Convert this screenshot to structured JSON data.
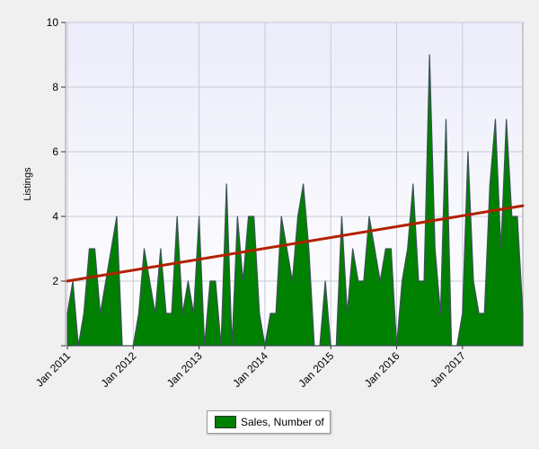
{
  "chart_data": {
    "type": "area",
    "ylabel": "Listings",
    "ylim": [
      0,
      10
    ],
    "y_ticks": [
      {
        "value": 2,
        "label": "2"
      },
      {
        "value": 4,
        "label": "4"
      },
      {
        "value": 6,
        "label": "6"
      },
      {
        "value": 8,
        "label": "8"
      },
      {
        "value": 10,
        "label": "10"
      }
    ],
    "x_ticks": [
      "Jan 2011",
      "Jan 2012",
      "Jan 2013",
      "Jan 2014",
      "Jan 2015",
      "Jan 2016",
      "Jan 2017"
    ],
    "x_start": "Jan 2011",
    "grid": true,
    "legend_position": "bottom",
    "series": [
      {
        "name": "Sales, Number of",
        "color": "#008000",
        "values": [
          1,
          2,
          0,
          1,
          3,
          3,
          1,
          2,
          3,
          4,
          0,
          0,
          0,
          1,
          3,
          2,
          1,
          3,
          1,
          1,
          4,
          1,
          2,
          1,
          4,
          0,
          2,
          2,
          0,
          5,
          0,
          4,
          2,
          4,
          4,
          1,
          0,
          1,
          1,
          4,
          3,
          2,
          4,
          5,
          3,
          0,
          0,
          2,
          0,
          0,
          4,
          1,
          3,
          2,
          2,
          4,
          3,
          2,
          3,
          3,
          0,
          2,
          3,
          5,
          2,
          2,
          9,
          3,
          1,
          7,
          0,
          0,
          1,
          6,
          2,
          1,
          1,
          5,
          7,
          3,
          7,
          4,
          4,
          1
        ]
      }
    ],
    "trend_line": {
      "color": "#b22000",
      "start": 2.0,
      "end": 4.33
    }
  },
  "legend": {
    "label": "Sales, Number of"
  }
}
